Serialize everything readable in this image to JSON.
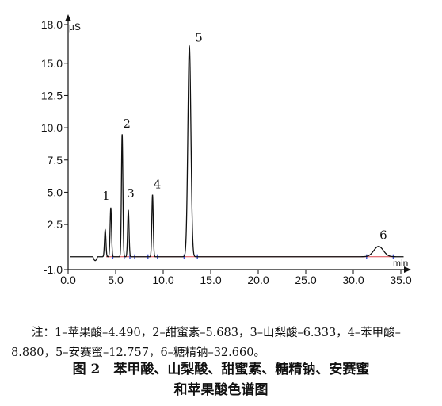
{
  "chart_data": {
    "type": "line",
    "x_unit": "min",
    "y_unit": "µS",
    "xlim": [
      0.0,
      36.0
    ],
    "ylim": [
      -1.0,
      18.0
    ],
    "x_ticks": [
      "0.0",
      "5.0",
      "10.0",
      "15.0",
      "20.0",
      "25.0",
      "30.0",
      "35.0"
    ],
    "x_tick_values": [
      0,
      5,
      10,
      15,
      20,
      25,
      30,
      35
    ],
    "y_ticks": [
      "-1.0",
      "2.5",
      "5.0",
      "7.5",
      "10.0",
      "12.5",
      "15.0",
      "18.0"
    ],
    "y_tick_values": [
      -1.0,
      2.5,
      5.0,
      7.5,
      10.0,
      12.5,
      15.0,
      18.0
    ],
    "baseline": 0.0,
    "peaks": [
      {
        "label": "1",
        "rt": 4.49,
        "height": 3.8
      },
      {
        "label": "2",
        "rt": 5.683,
        "height": 9.5
      },
      {
        "label": "3",
        "rt": 6.333,
        "height": 3.6
      },
      {
        "label": "4",
        "rt": 8.88,
        "height": 4.8
      },
      {
        "label": "5",
        "rt": 12.757,
        "height": 16.3
      },
      {
        "label": "6",
        "rt": 32.66,
        "height": 0.8
      }
    ],
    "minor_peaks": [
      {
        "rt": 3.9,
        "height": 2.1
      }
    ]
  },
  "note": "注：1–苹果酸–4.490，2–甜蜜素–5.683，3–山梨酸–6.333，4–苯甲酸–8.880，5–安赛蜜–12.757，6–糖精钠–32.660。",
  "caption": {
    "line1": "图 2　苯甲酸、山梨酸、甜蜜素、糖精钠、安赛蜜",
    "line2": "和苹果酸色谱图"
  },
  "colors": {
    "trace": "#111111",
    "baseline": "#d9434c",
    "markers": "#3a4fd0"
  }
}
